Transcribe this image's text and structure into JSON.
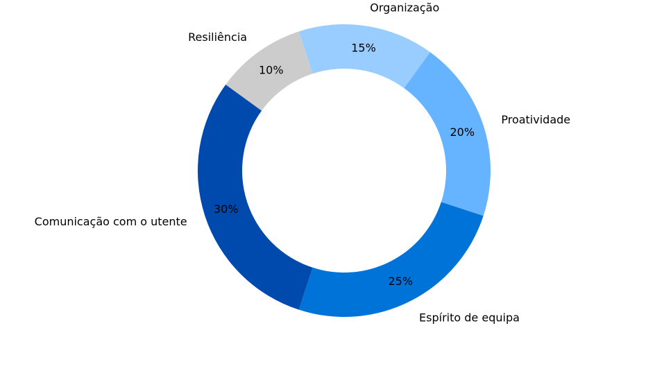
{
  "chart_data": {
    "type": "pie",
    "donut": true,
    "title": "",
    "categories": [
      "Organização",
      "Proatividade",
      "Espírito de equipa",
      "Comunicação com o utente",
      "Resiliência"
    ],
    "values": [
      15,
      20,
      25,
      30,
      10
    ],
    "value_labels": [
      "15%",
      "20%",
      "25%",
      "30%",
      "10%"
    ],
    "colors": [
      "#99ccff",
      "#66b3ff",
      "#0073d9",
      "#004aad",
      "#cccccc"
    ],
    "start_angle_deg": 108,
    "direction": "clockwise",
    "legend": "none"
  }
}
